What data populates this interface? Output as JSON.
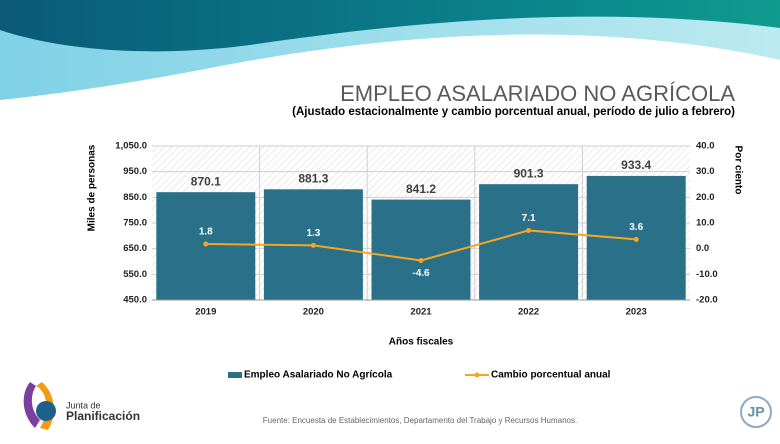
{
  "chart_data": {
    "type": "combo",
    "title": "EMPLEO ASALARIADO NO AGRÍCOLA",
    "subtitle": "(Ajustado estacionalmente y cambio porcentual anual, período de julio a febrero)",
    "x_label": "Años fiscales",
    "y_label": "Miles de personas",
    "y2_label": "Por ciento",
    "categories": [
      "2019",
      "2020",
      "2021",
      "2022",
      "2023"
    ],
    "series": [
      {
        "name": "Empleo Asalariado No Agrícola",
        "type": "bar",
        "color": "#2b7089",
        "values": [
          870.1,
          881.3,
          841.2,
          901.3,
          933.4
        ]
      },
      {
        "name": "Cambio porcentual anual",
        "type": "line",
        "axis": "y2",
        "color": "#f5a623",
        "values": [
          1.8,
          1.3,
          -4.6,
          7.1,
          3.6
        ]
      }
    ],
    "ylim": [
      450,
      1050
    ],
    "yticks": [
      {
        "value": 450,
        "label": "450.0"
      },
      {
        "value": 550,
        "label": "550.0"
      },
      {
        "value": 650,
        "label": "650.0"
      },
      {
        "value": 750,
        "label": "750.0"
      },
      {
        "value": 850,
        "label": "850.0"
      },
      {
        "value": 950,
        "label": "950.0"
      },
      {
        "value": 1050,
        "label": "1,050.0"
      }
    ],
    "y2lim": [
      -20,
      40
    ],
    "y2ticks": [
      {
        "value": -20,
        "label": "-20.0"
      },
      {
        "value": -10,
        "label": "-10.0"
      },
      {
        "value": 0,
        "label": "0.0"
      },
      {
        "value": 10,
        "label": "10.0"
      },
      {
        "value": 20,
        "label": "20.0"
      },
      {
        "value": 30,
        "label": "30.0"
      },
      {
        "value": 40,
        "label": "40.0"
      }
    ],
    "grid": true,
    "legend": "bottom",
    "source": "Fuente: Encuesta de Establecimientos, Departamento del Trabajo y Recursos Humanos."
  },
  "branding": {
    "logo_line1": "Junta de",
    "logo_line2": "Planificación",
    "corner_logo": "JP"
  }
}
